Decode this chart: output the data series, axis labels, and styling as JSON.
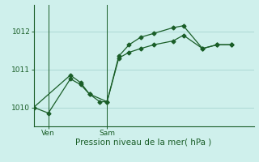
{
  "xlabel": "Pression niveau de la mer( hPa )",
  "background_color": "#cff0ec",
  "grid_color": "#acd8d4",
  "line_color": "#1a5e28",
  "ylim": [
    1009.5,
    1012.7
  ],
  "xlim": [
    0,
    15
  ],
  "yticks": [
    1010,
    1011,
    1012
  ],
  "ven_x": 1.0,
  "sam_x": 5.0,
  "series1_x": [
    0,
    1.0,
    2.5,
    3.2,
    3.8,
    5.0,
    5.8,
    6.5,
    7.3,
    8.2,
    9.5,
    10.2,
    11.5,
    12.5,
    13.5
  ],
  "series1_y": [
    1010.0,
    1009.85,
    1010.75,
    1010.6,
    1010.35,
    1010.15,
    1011.35,
    1011.65,
    1011.85,
    1011.95,
    1012.1,
    1012.15,
    1011.55,
    1011.65,
    1011.65
  ],
  "series2_x": [
    0,
    2.5,
    3.2,
    3.8,
    4.5,
    5.0,
    5.8,
    6.5,
    7.3,
    8.2,
    9.5,
    10.2,
    11.5,
    12.5,
    13.5
  ],
  "series2_y": [
    1010.0,
    1010.85,
    1010.65,
    1010.35,
    1010.15,
    1010.15,
    1011.3,
    1011.45,
    1011.55,
    1011.65,
    1011.75,
    1011.9,
    1011.55,
    1011.65,
    1011.65
  ],
  "marker_size": 2.5,
  "linewidth": 0.9,
  "fontsize_tick": 6.5,
  "fontsize_xlabel": 7.5
}
